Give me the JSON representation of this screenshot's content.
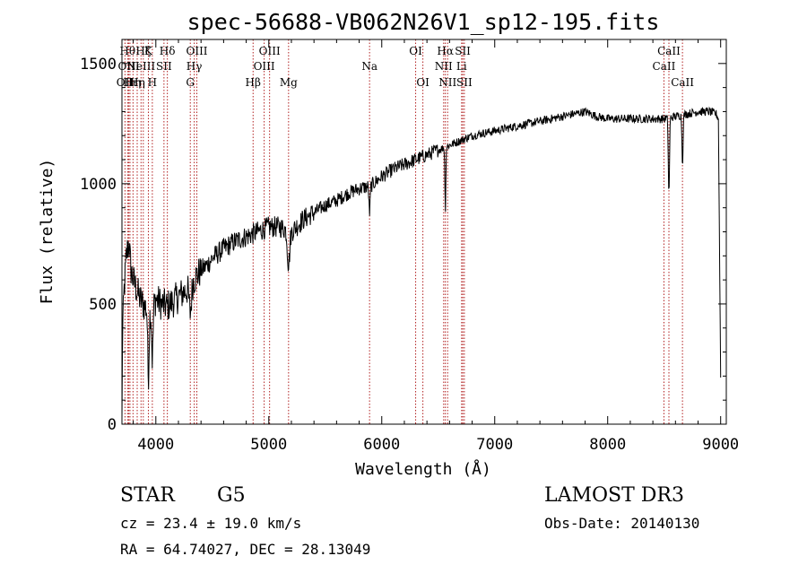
{
  "title": "spec-56688-VB062N26V1_sp12-195.fits",
  "colors": {
    "spectrum": "#000000",
    "line_marker": "#b22222",
    "axis": "#000000"
  },
  "chart_data": {
    "type": "line",
    "xlabel": "Wavelength (Å)",
    "ylabel": "Flux (relative)",
    "xlim": [
      3700,
      9050
    ],
    "ylim": [
      0,
      1600
    ],
    "xticks": [
      4000,
      5000,
      6000,
      7000,
      8000,
      9000
    ],
    "yticks": [
      0,
      500,
      1000,
      1500
    ],
    "grid": false,
    "legend": "none",
    "continuum": [
      [
        3700,
        0
      ],
      [
        3705,
        380
      ],
      [
        3720,
        560
      ],
      [
        3740,
        700
      ],
      [
        3760,
        760
      ],
      [
        3780,
        640
      ],
      [
        3800,
        600
      ],
      [
        3830,
        560
      ],
      [
        3860,
        520
      ],
      [
        3900,
        490
      ],
      [
        3950,
        470
      ],
      [
        4000,
        520
      ],
      [
        4050,
        500
      ],
      [
        4100,
        490
      ],
      [
        4150,
        510
      ],
      [
        4200,
        530
      ],
      [
        4250,
        550
      ],
      [
        4300,
        570
      ],
      [
        4350,
        610
      ],
      [
        4400,
        640
      ],
      [
        4450,
        660
      ],
      [
        4500,
        690
      ],
      [
        4600,
        730
      ],
      [
        4700,
        760
      ],
      [
        4800,
        780
      ],
      [
        4900,
        800
      ],
      [
        5000,
        820
      ],
      [
        5100,
        820
      ],
      [
        5200,
        800
      ],
      [
        5300,
        850
      ],
      [
        5400,
        880
      ],
      [
        5500,
        910
      ],
      [
        5600,
        930
      ],
      [
        5700,
        960
      ],
      [
        5800,
        980
      ],
      [
        5900,
        990
      ],
      [
        6000,
        1030
      ],
      [
        6100,
        1060
      ],
      [
        6200,
        1080
      ],
      [
        6300,
        1100
      ],
      [
        6400,
        1120
      ],
      [
        6500,
        1140
      ],
      [
        6600,
        1160
      ],
      [
        6700,
        1180
      ],
      [
        6800,
        1200
      ],
      [
        6900,
        1210
      ],
      [
        7000,
        1220
      ],
      [
        7200,
        1240
      ],
      [
        7400,
        1260
      ],
      [
        7600,
        1280
      ],
      [
        7800,
        1300
      ],
      [
        7900,
        1280
      ],
      [
        8000,
        1270
      ],
      [
        8200,
        1270
      ],
      [
        8400,
        1270
      ],
      [
        8500,
        1270
      ],
      [
        8600,
        1280
      ],
      [
        8700,
        1290
      ],
      [
        8800,
        1300
      ],
      [
        8900,
        1300
      ],
      [
        8960,
        1290
      ],
      [
        8980,
        1270
      ],
      [
        9000,
        200
      ]
    ],
    "absorption_features": [
      {
        "wavelength": 3934,
        "depth": 280,
        "width": 6
      },
      {
        "wavelength": 3969,
        "depth": 220,
        "width": 6
      },
      {
        "wavelength": 4305,
        "depth": 110,
        "width": 10
      },
      {
        "wavelength": 5175,
        "depth": 140,
        "width": 10
      },
      {
        "wavelength": 5892,
        "depth": 110,
        "width": 5
      },
      {
        "wavelength": 6563,
        "depth": 260,
        "width": 4
      },
      {
        "wavelength": 8542,
        "depth": 320,
        "width": 5
      },
      {
        "wavelength": 8662,
        "depth": 200,
        "width": 5
      }
    ],
    "line_markers": [
      {
        "wavelength": 3727,
        "label": "OII",
        "row": 2
      },
      {
        "wavelength": 3750,
        "label": "Hθ",
        "row": 0
      },
      {
        "wavelength": 3760,
        "label": "OIII",
        "row": 1
      },
      {
        "wavelength": 3771,
        "label": "Hι",
        "row": 2
      },
      {
        "wavelength": 3798,
        "label": "Hη",
        "row": 2
      },
      {
        "wavelength": 3835,
        "label": "Hη",
        "row": 2
      },
      {
        "wavelength": 3869,
        "label": "NeIII",
        "row": 1
      },
      {
        "wavelength": 3889,
        "label": "Hζ",
        "row": 0
      },
      {
        "wavelength": 3934,
        "label": "K",
        "row": 0
      },
      {
        "wavelength": 3969,
        "label": "H",
        "row": 2
      },
      {
        "wavelength": 4072,
        "label": "SII",
        "row": 1
      },
      {
        "wavelength": 4102,
        "label": "Hδ",
        "row": 0
      },
      {
        "wavelength": 4305,
        "label": "G",
        "row": 2
      },
      {
        "wavelength": 4340,
        "label": "Hγ",
        "row": 1
      },
      {
        "wavelength": 4363,
        "label": "OIII",
        "row": 0
      },
      {
        "wavelength": 4861,
        "label": "Hβ",
        "row": 2
      },
      {
        "wavelength": 4959,
        "label": "OIII",
        "row": 1
      },
      {
        "wavelength": 5007,
        "label": "OIII",
        "row": 0
      },
      {
        "wavelength": 5175,
        "label": "Mg",
        "row": 2
      },
      {
        "wavelength": 5892,
        "label": "Na",
        "row": 1
      },
      {
        "wavelength": 6300,
        "label": "OI",
        "row": 0
      },
      {
        "wavelength": 6364,
        "label": "OI",
        "row": 2
      },
      {
        "wavelength": 6548,
        "label": "NII",
        "row": 1
      },
      {
        "wavelength": 6563,
        "label": "Hα",
        "row": 0
      },
      {
        "wavelength": 6583,
        "label": "NII",
        "row": 2
      },
      {
        "wavelength": 6707,
        "label": "Li",
        "row": 1
      },
      {
        "wavelength": 6717,
        "label": "SII",
        "row": 0
      },
      {
        "wavelength": 6731,
        "label": "SII",
        "row": 2
      },
      {
        "wavelength": 8498,
        "label": "CaII",
        "row": 1
      },
      {
        "wavelength": 8542,
        "label": "CaII",
        "row": 0
      },
      {
        "wavelength": 8662,
        "label": "CaII",
        "row": 2
      }
    ]
  },
  "info": {
    "object_class": "STAR",
    "subclass": "G5",
    "survey": "LAMOST DR3",
    "cz": "cz = 23.4 ± 19.0 km/s",
    "obs_date": "Obs-Date: 20140130",
    "coords": "RA =  64.74027, DEC =  28.13049"
  }
}
